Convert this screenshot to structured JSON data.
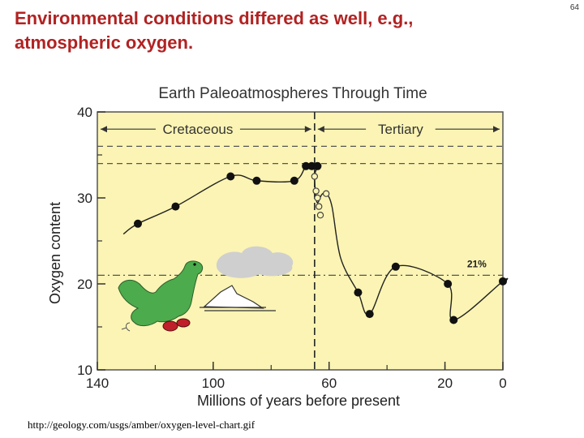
{
  "slide": {
    "title_line1": "Environmental conditions differed as well, e.g.,",
    "title_line2": "atmospheric oxygen.",
    "page_number": "64",
    "source": "http://geology.com/usgs/amber/oxygen-level-chart.gif"
  },
  "colors": {
    "title": "#b22222",
    "plot_background": "#fbf4b4",
    "line": "#222222"
  },
  "chart_data": {
    "type": "line",
    "title": "Earth Paleoatmospheres Through Time",
    "xlabel": "Millions of years before present",
    "ylabel": "Oxygen content",
    "xlim": [
      140,
      0
    ],
    "ylim": [
      10,
      40
    ],
    "x_ticks": [
      140,
      100,
      60,
      20,
      0
    ],
    "y_ticks": [
      10,
      20,
      30,
      40
    ],
    "periods": [
      {
        "label": "Cretaceous",
        "from": 140,
        "to": 65
      },
      {
        "label": "Tertiary",
        "from": 65,
        "to": 0
      }
    ],
    "reference_lines": [
      {
        "value": 21,
        "label": "21%"
      }
    ],
    "boundary_line": 65,
    "series": [
      {
        "marker": "filled",
        "points": [
          [
            126,
            27
          ],
          [
            113,
            29
          ],
          [
            94,
            32.5
          ],
          [
            85,
            32
          ],
          [
            72,
            32
          ],
          [
            68,
            33.7
          ],
          [
            66,
            33.7
          ],
          [
            64,
            33.7
          ],
          [
            50,
            19
          ],
          [
            46,
            16.5
          ],
          [
            37,
            22
          ],
          [
            19,
            20
          ],
          [
            17,
            15.8
          ],
          [
            0,
            20.3
          ]
        ]
      },
      {
        "marker": "open",
        "points": [
          [
            65,
            32.5
          ],
          [
            64.5,
            30.8
          ],
          [
            64,
            30
          ],
          [
            63.5,
            29
          ],
          [
            63,
            28
          ],
          [
            61,
            30.5
          ]
        ]
      }
    ]
  }
}
